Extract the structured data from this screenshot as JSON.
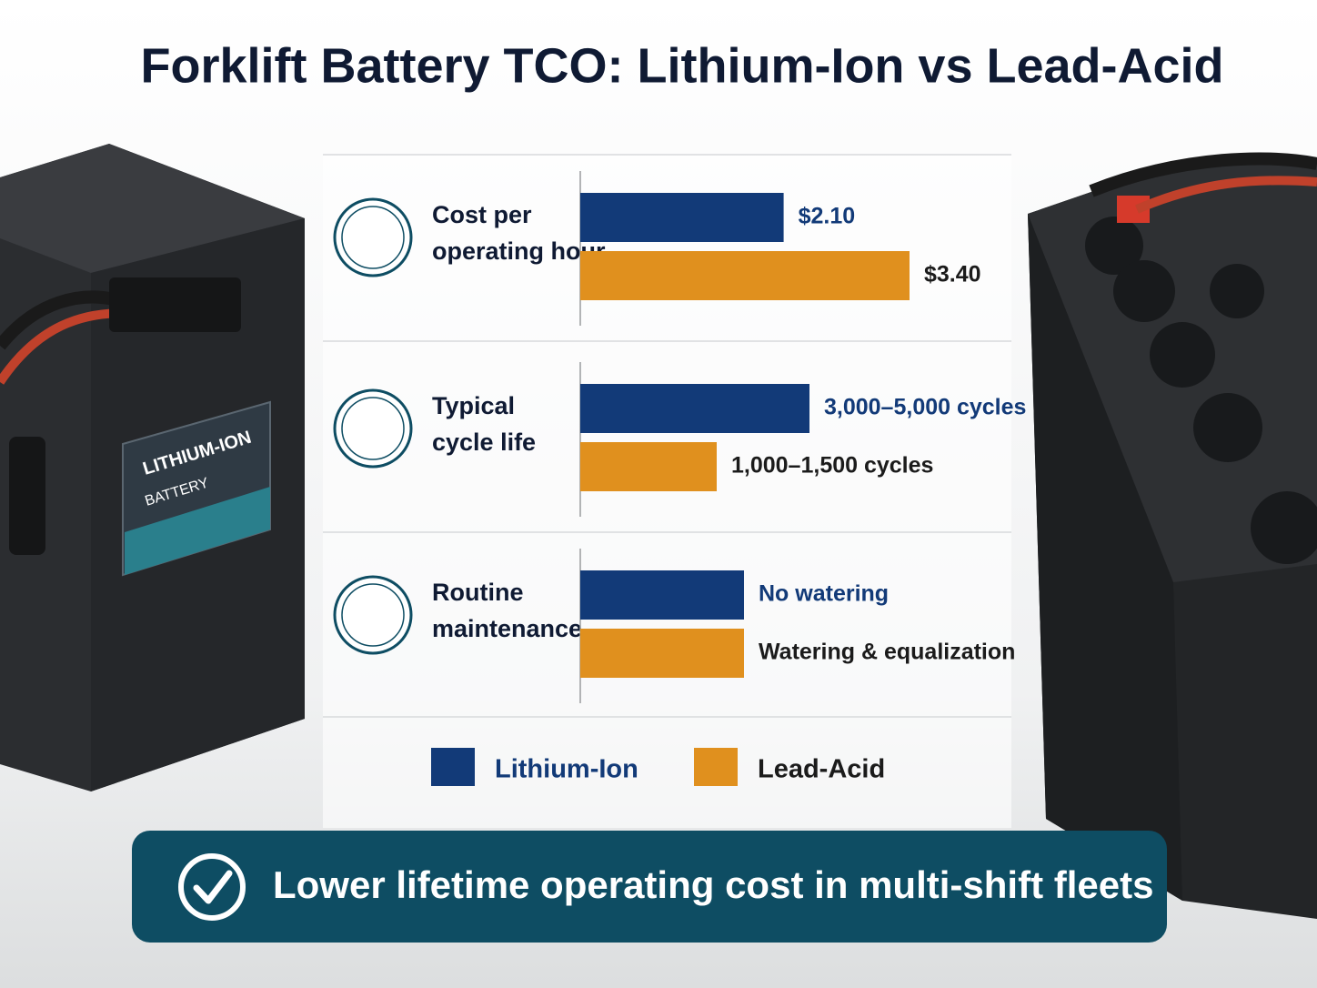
{
  "title": "Forklift Battery TCO: Lithium-Ion vs Lead-Acid",
  "battery_label": [
    "LITHIUM-ION",
    "BATTERY"
  ],
  "chart_data": {
    "type": "bar",
    "series": [
      {
        "name": "Lithium-Ion",
        "color": "#123a78"
      },
      {
        "name": "Lead-Acid",
        "color": "#e0901e"
      }
    ],
    "groups": [
      {
        "label": [
          "Cost per",
          "operating hour"
        ],
        "values": [
          2.1,
          3.4
        ],
        "value_labels": [
          "$2.10",
          "$3.40"
        ]
      },
      {
        "label": [
          "Typical",
          "cycle life"
        ],
        "value_labels": [
          "3,000–5,000 cycles",
          "1,000–1,500 cycles"
        ]
      },
      {
        "label": [
          "Routine",
          "maintenance"
        ],
        "value_labels": [
          "No watering",
          "Watering & equalization"
        ]
      }
    ]
  },
  "banner": "Lower lifetime operating cost in multi-shift fleets"
}
